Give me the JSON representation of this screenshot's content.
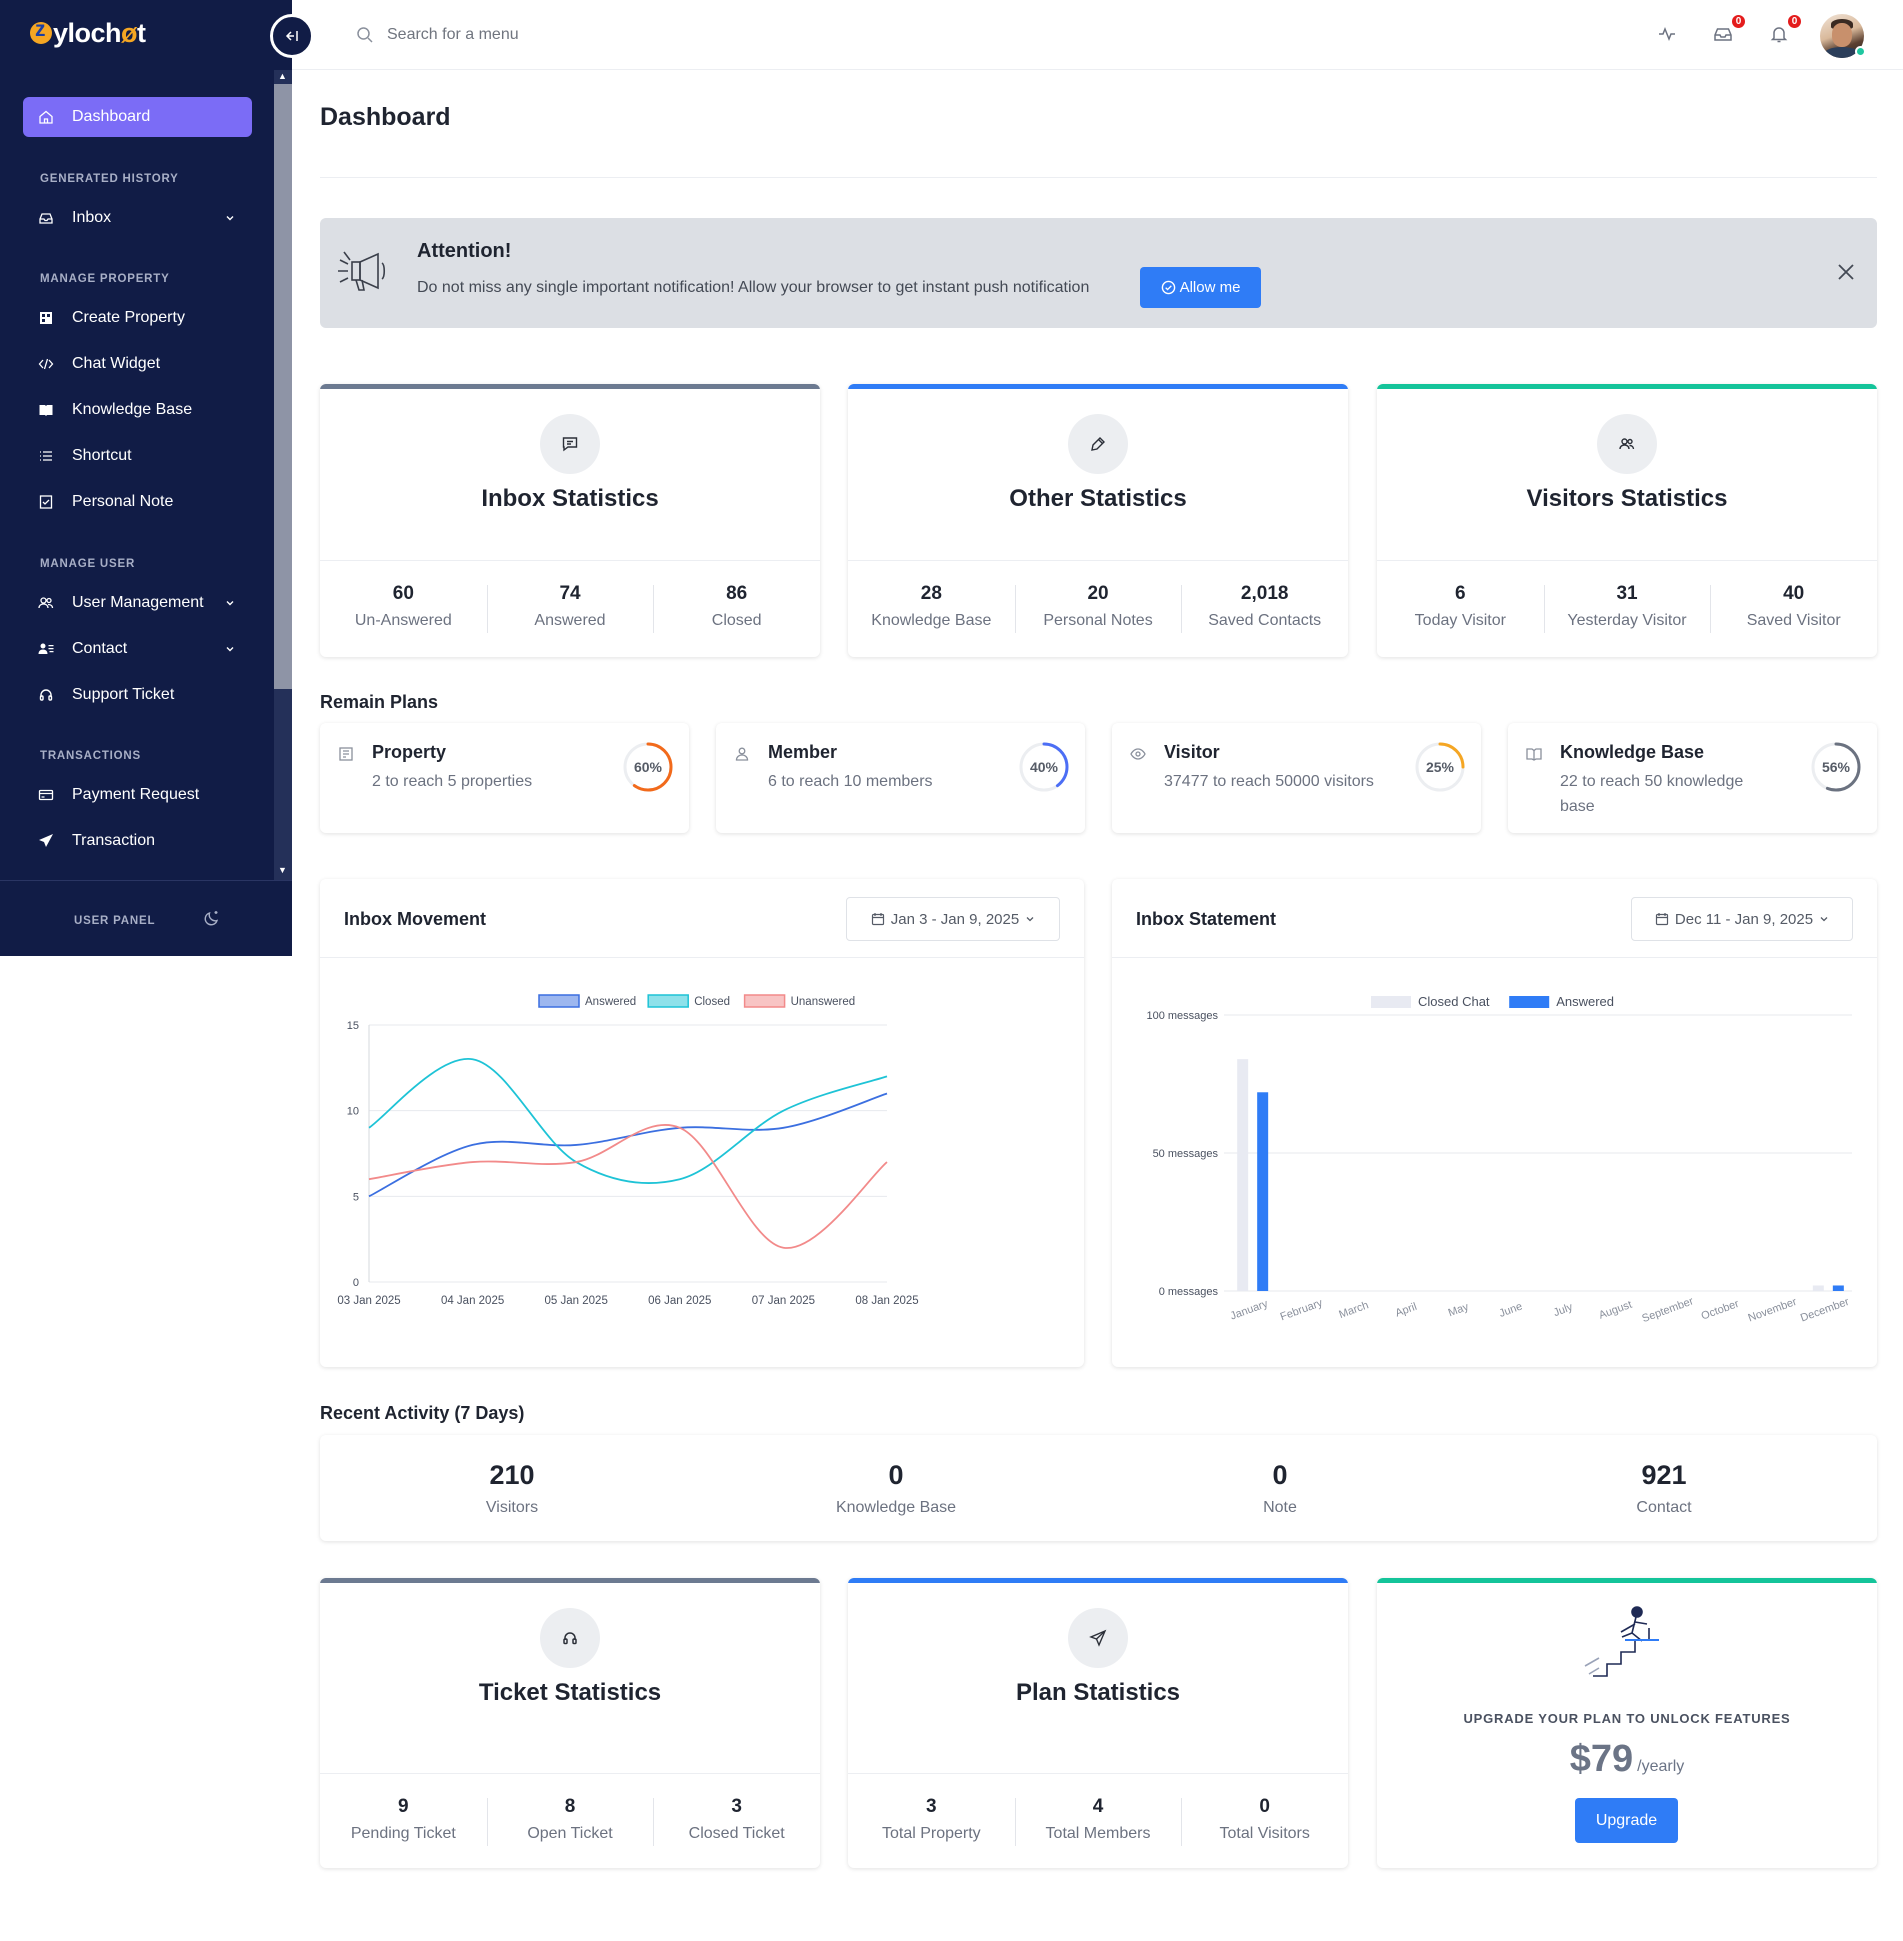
{
  "app": {
    "logo_text_a": "ylo",
    "logo_text_b": "ch",
    "logo_text_c": "t"
  },
  "sidebar": {
    "dashboard": "Dashboard",
    "sections": [
      "GENERATED HISTORY",
      "MANAGE PROPERTY",
      "MANAGE USER",
      "TRANSACTIONS"
    ],
    "inbox": "Inbox",
    "create_property": "Create Property",
    "chat_widget": "Chat Widget",
    "knowledge_base": "Knowledge Base",
    "shortcut": "Shortcut",
    "personal_note": "Personal Note",
    "user_management": "User Management",
    "contact": "Contact",
    "support_ticket": "Support Ticket",
    "payment_request": "Payment Request",
    "transaction": "Transaction",
    "user_panel": "USER PANEL"
  },
  "topbar": {
    "search_placeholder": "Search for a menu",
    "inbox_badge": "0",
    "notif_badge": "0"
  },
  "page": {
    "title": "Dashboard"
  },
  "alert": {
    "title": "Attention!",
    "message": "Do not miss any single important notification! Allow your browser to get instant push notification",
    "button": "Allow me"
  },
  "stats": {
    "inbox": {
      "title": "Inbox Statistics",
      "color": "#6c7a91",
      "items": [
        {
          "value": "60",
          "label": "Un-Answered"
        },
        {
          "value": "74",
          "label": "Answered"
        },
        {
          "value": "86",
          "label": "Closed"
        }
      ]
    },
    "other": {
      "title": "Other Statistics",
      "color": "#2f7cf6",
      "items": [
        {
          "value": "28",
          "label": "Knowledge Base"
        },
        {
          "value": "20",
          "label": "Personal Notes"
        },
        {
          "value": "2,018",
          "label": "Saved Contacts"
        }
      ]
    },
    "visitors": {
      "title": "Visitors Statistics",
      "color": "#14c49a",
      "items": [
        {
          "value": "6",
          "label": "Today Visitor"
        },
        {
          "value": "31",
          "label": "Yesterday Visitor"
        },
        {
          "value": "40",
          "label": "Saved Visitor"
        }
      ]
    },
    "ticket": {
      "title": "Ticket Statistics",
      "color": "#6c7a91",
      "items": [
        {
          "value": "9",
          "label": "Pending Ticket"
        },
        {
          "value": "8",
          "label": "Open Ticket"
        },
        {
          "value": "3",
          "label": "Closed Ticket"
        }
      ]
    },
    "plan": {
      "title": "Plan Statistics",
      "color": "#2f7cf6",
      "items": [
        {
          "value": "3",
          "label": "Total Property"
        },
        {
          "value": "4",
          "label": "Total Members"
        },
        {
          "value": "0",
          "label": "Total Visitors"
        }
      ]
    }
  },
  "remain_plans": {
    "title": "Remain Plans",
    "items": [
      {
        "name": "Property",
        "desc": "2 to reach 5 properties",
        "percent": 60,
        "percent_label": "60%",
        "color": "#f26a1b"
      },
      {
        "name": "Member",
        "desc": "6 to reach 10 members",
        "percent": 40,
        "percent_label": "40%",
        "color": "#4c6ef5"
      },
      {
        "name": "Visitor",
        "desc": "37477 to reach 50000 visitors",
        "percent": 25,
        "percent_label": "25%",
        "color": "#f5a623"
      },
      {
        "name": "Knowledge Base",
        "desc": "22 to reach 50 knowledge base",
        "percent": 56,
        "percent_label": "56%",
        "color": "#6b7280"
      }
    ]
  },
  "inbox_movement": {
    "title": "Inbox Movement",
    "date_range": "Jan 3 - Jan 9, 2025"
  },
  "inbox_statement": {
    "title": "Inbox Statement",
    "date_range": "Dec 11 - Jan 9, 2025"
  },
  "chart_data": [
    {
      "type": "line",
      "x": [
        "03 Jan 2025",
        "04 Jan 2025",
        "05 Jan 2025",
        "06 Jan 2025",
        "07 Jan 2025",
        "08 Jan 2025"
      ],
      "ylim": [
        0,
        15
      ],
      "yticks": [
        "0",
        "5",
        "10",
        "15"
      ],
      "grid": true,
      "legend": "top-center",
      "series": [
        {
          "name": "Answered",
          "color": "#3b6fe0",
          "values": [
            5,
            8,
            8,
            9,
            9,
            11
          ]
        },
        {
          "name": "Closed",
          "color": "#1ec3d6",
          "values": [
            9,
            13,
            7,
            6,
            10,
            12
          ]
        },
        {
          "name": "Unanswered",
          "color": "#f28a8a",
          "values": [
            6,
            7,
            7,
            9,
            2,
            7
          ]
        }
      ]
    },
    {
      "type": "bar",
      "categories": [
        "January",
        "February",
        "March",
        "April",
        "May",
        "June",
        "July",
        "August",
        "September",
        "October",
        "November",
        "December"
      ],
      "ylim": [
        0,
        100
      ],
      "yticks": [
        "0 messages",
        "50 messages",
        "100 messages"
      ],
      "grid": true,
      "legend": "top-center",
      "series": [
        {
          "name": "Closed Chat",
          "color": "#e8eaf2",
          "values": [
            84,
            0,
            0,
            0,
            0,
            0,
            0,
            0,
            0,
            0,
            0,
            2
          ]
        },
        {
          "name": "Answered",
          "color": "#2f7cf6",
          "values": [
            72,
            0,
            0,
            0,
            0,
            0,
            0,
            0,
            0,
            0,
            0,
            2
          ]
        }
      ]
    }
  ],
  "recent_activity": {
    "title": "Recent Activity (7 Days)",
    "items": [
      {
        "value": "210",
        "label": "Visitors"
      },
      {
        "value": "0",
        "label": "Knowledge Base"
      },
      {
        "value": "0",
        "label": "Note"
      },
      {
        "value": "921",
        "label": "Contact"
      }
    ]
  },
  "upgrade": {
    "headline": "UPGRADE YOUR PLAN TO UNLOCK FEATURES",
    "price": "$79",
    "period": "/yearly",
    "button": "Upgrade"
  }
}
